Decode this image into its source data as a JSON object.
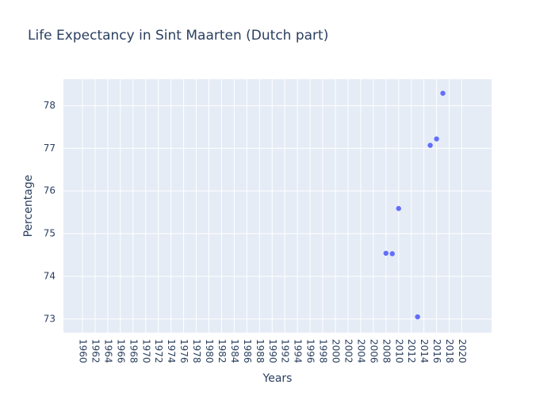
{
  "chart_data": {
    "type": "scatter",
    "title": "Life Expectancy in Sint Maarten (Dutch part)",
    "xlabel": "Years",
    "ylabel": "Percentage",
    "x_ticks": [
      "1960",
      "1962",
      "1964",
      "1966",
      "1968",
      "1970",
      "1972",
      "1974",
      "1976",
      "1978",
      "1980",
      "1982",
      "1984",
      "1986",
      "1988",
      "1990",
      "1992",
      "1994",
      "1996",
      "1998",
      "2000",
      "2002",
      "2004",
      "2006",
      "2008",
      "2010",
      "2012",
      "2014",
      "2016",
      "2018",
      "2020"
    ],
    "y_ticks": [
      73,
      74,
      75,
      76,
      77,
      78
    ],
    "y_range": [
      72.68,
      78.62
    ],
    "grid": true,
    "marker_color": "#636efa",
    "plot_background": "#e5ecf6",
    "points": [
      {
        "x": "2008",
        "y": 74.54
      },
      {
        "x": "2009",
        "y": 74.53
      },
      {
        "x": "2010",
        "y": 75.59
      },
      {
        "x": "2013",
        "y": 73.05
      },
      {
        "x": "2015",
        "y": 77.07
      },
      {
        "x": "2016",
        "y": 77.22
      },
      {
        "x": "2017",
        "y": 78.29
      }
    ]
  }
}
